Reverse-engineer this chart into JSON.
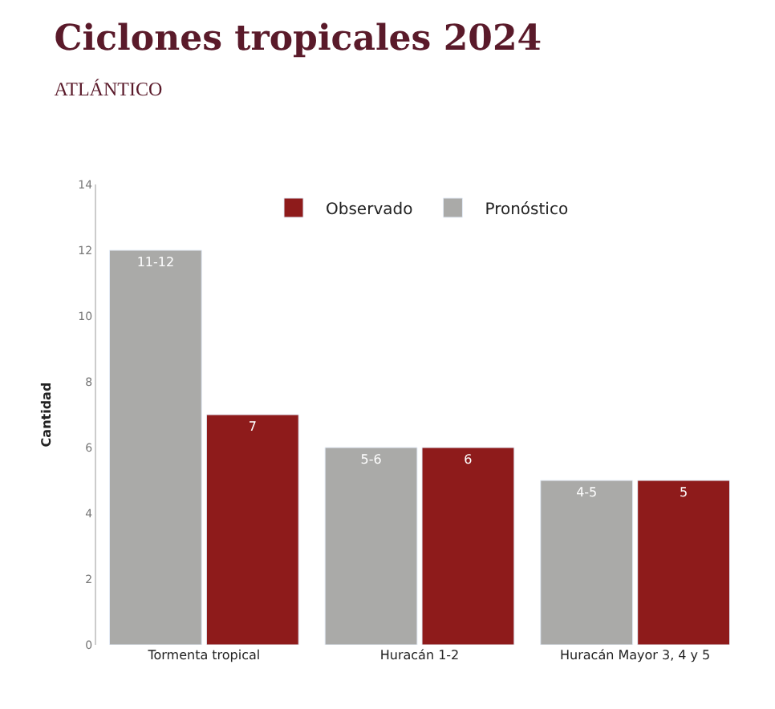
{
  "chart_data": {
    "type": "bar",
    "title": "Ciclones tropicales 2024",
    "subtitle": "ATLÁNTICO",
    "ylabel": "Cantidad",
    "categories": [
      "Tormenta tropical",
      "Huracán 1-2",
      "Huracán Mayor 3, 4 y 5"
    ],
    "series": [
      {
        "name": "Pronóstico",
        "color": "#aaaaa8",
        "values": [
          12,
          6,
          5
        ],
        "value_labels": [
          "11-12",
          "5-6",
          "4-5"
        ]
      },
      {
        "name": "Observado",
        "color": "#8e1b1b",
        "values": [
          7,
          6,
          5
        ],
        "value_labels": [
          "7",
          "6",
          "5"
        ]
      }
    ],
    "ylim": [
      0,
      14
    ],
    "yticks": [
      0,
      2,
      4,
      6,
      8,
      10,
      12,
      14
    ],
    "legend": "top"
  }
}
